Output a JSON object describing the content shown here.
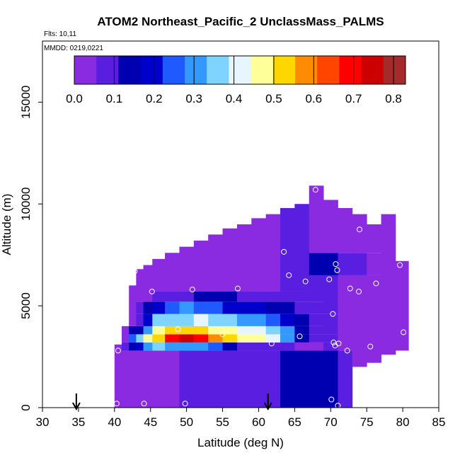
{
  "chart_data": {
    "type": "heatmap",
    "title": "ATOM2 Northeast_Pacific_2 UnclassMass_PALMS",
    "flights_label": "Flts: 10,11",
    "dates_label": "MMDD: 0219,0221",
    "xlabel": "Latitude (deg N)",
    "ylabel": "Altitude (m)",
    "xlim": [
      30,
      85
    ],
    "ylim": [
      0,
      18000
    ],
    "x_ticks": [
      "30",
      "35",
      "40",
      "45",
      "50",
      "55",
      "60",
      "65",
      "70",
      "75",
      "80",
      "85"
    ],
    "y_ticks": [
      "0",
      "5000",
      "10000",
      "15000"
    ],
    "colorbar": {
      "range": [
        0.0,
        0.83
      ],
      "ticks": [
        "0.0",
        "0.1",
        "0.2",
        "0.3",
        "0.4",
        "0.5",
        "0.6",
        "0.7",
        "0.8"
      ],
      "colors": [
        "#8a2be2",
        "#5a1ee0",
        "#0000b0",
        "#0000cd",
        "#1e5aff",
        "#3399ff",
        "#7fd4ff",
        "#e6f5ff",
        "#ffff99",
        "#ffd700",
        "#ff8c00",
        "#ff4500",
        "#ff0000",
        "#cc0000",
        "#a52a2a"
      ]
    },
    "grid": false,
    "columns": [
      {
        "lat": 40.5,
        "bottom": 0,
        "top": 3100,
        "layers": [
          [
            0,
            3100,
            0.02
          ]
        ]
      },
      {
        "lat": 41.5,
        "bottom": 0,
        "top": 4000,
        "layers": [
          [
            0,
            2800,
            0.02
          ],
          [
            2800,
            3200,
            0.08
          ],
          [
            3200,
            4000,
            0.05
          ]
        ]
      },
      {
        "lat": 42.5,
        "bottom": 0,
        "top": 6000,
        "layers": [
          [
            0,
            2800,
            0.03
          ],
          [
            2800,
            3200,
            0.15
          ],
          [
            3200,
            3600,
            0.25
          ],
          [
            3600,
            4000,
            0.12
          ],
          [
            4000,
            6000,
            0.04
          ]
        ]
      },
      {
        "lat": 43.5,
        "bottom": 0,
        "top": 6800,
        "layers": [
          [
            0,
            2800,
            0.03
          ],
          [
            2800,
            3200,
            0.2
          ],
          [
            3200,
            3600,
            0.35
          ],
          [
            3600,
            4000,
            0.15
          ],
          [
            4000,
            4600,
            0.08
          ],
          [
            4600,
            5200,
            0.1
          ],
          [
            5200,
            6800,
            0.03
          ]
        ]
      },
      {
        "lat": 44.5,
        "bottom": 0,
        "top": 7000,
        "layers": [
          [
            0,
            2800,
            0.03
          ],
          [
            2800,
            3200,
            0.3
          ],
          [
            3200,
            3600,
            0.45
          ],
          [
            3600,
            4000,
            0.3
          ],
          [
            4000,
            4600,
            0.2
          ],
          [
            4600,
            5200,
            0.15
          ],
          [
            5200,
            7000,
            0.04
          ]
        ]
      },
      {
        "lat": 46,
        "bottom": 0,
        "top": 7300,
        "layers": [
          [
            0,
            2800,
            0.04
          ],
          [
            2800,
            3200,
            0.35
          ],
          [
            3200,
            3600,
            0.55
          ],
          [
            3600,
            4000,
            0.45
          ],
          [
            4000,
            4600,
            0.35
          ],
          [
            4600,
            5200,
            0.2
          ],
          [
            5200,
            5700,
            0.1
          ],
          [
            5700,
            7300,
            0.04
          ]
        ]
      },
      {
        "lat": 48,
        "bottom": 0,
        "top": 7600,
        "layers": [
          [
            0,
            2800,
            0.05
          ],
          [
            2800,
            3200,
            0.3
          ],
          [
            3200,
            3600,
            0.7
          ],
          [
            3600,
            4000,
            0.5
          ],
          [
            4000,
            4600,
            0.38
          ],
          [
            4600,
            5200,
            0.25
          ],
          [
            5200,
            5700,
            0.1
          ],
          [
            5700,
            7600,
            0.04
          ]
        ]
      },
      {
        "lat": 50,
        "bottom": 0,
        "top": 7900,
        "layers": [
          [
            0,
            2800,
            0.06
          ],
          [
            2800,
            3200,
            0.3
          ],
          [
            3200,
            3600,
            0.72
          ],
          [
            3600,
            4000,
            0.5
          ],
          [
            4000,
            4600,
            0.38
          ],
          [
            4600,
            5200,
            0.28
          ],
          [
            5200,
            5700,
            0.1
          ],
          [
            5700,
            7900,
            0.04
          ]
        ]
      },
      {
        "lat": 52,
        "bottom": 0,
        "top": 8200,
        "layers": [
          [
            0,
            2800,
            0.06
          ],
          [
            2800,
            3200,
            0.3
          ],
          [
            3200,
            3600,
            0.68
          ],
          [
            3600,
            4000,
            0.5
          ],
          [
            4000,
            4600,
            0.4
          ],
          [
            4600,
            5200,
            0.25
          ],
          [
            5200,
            5700,
            0.12
          ],
          [
            5700,
            8200,
            0.04
          ]
        ]
      },
      {
        "lat": 54,
        "bottom": 0,
        "top": 8500,
        "layers": [
          [
            0,
            2800,
            0.07
          ],
          [
            2800,
            3200,
            0.25
          ],
          [
            3200,
            3600,
            0.6
          ],
          [
            3600,
            4000,
            0.48
          ],
          [
            4000,
            4600,
            0.38
          ],
          [
            4600,
            5200,
            0.25
          ],
          [
            5200,
            5700,
            0.12
          ],
          [
            5700,
            8500,
            0.04
          ]
        ]
      },
      {
        "lat": 56,
        "bottom": 0,
        "top": 8800,
        "layers": [
          [
            0,
            2800,
            0.08
          ],
          [
            2800,
            3200,
            0.15
          ],
          [
            3200,
            3600,
            0.52
          ],
          [
            3600,
            4000,
            0.45
          ],
          [
            4000,
            4600,
            0.35
          ],
          [
            4600,
            5200,
            0.22
          ],
          [
            5200,
            5700,
            0.12
          ],
          [
            5700,
            8800,
            0.04
          ]
        ]
      },
      {
        "lat": 58,
        "bottom": 0,
        "top": 9000,
        "layers": [
          [
            0,
            2800,
            0.09
          ],
          [
            2800,
            3200,
            0.1
          ],
          [
            3200,
            3600,
            0.48
          ],
          [
            3600,
            4000,
            0.42
          ],
          [
            4000,
            4600,
            0.32
          ],
          [
            4600,
            5200,
            0.2
          ],
          [
            5200,
            5700,
            0.1
          ],
          [
            5700,
            9000,
            0.05
          ]
        ]
      },
      {
        "lat": 60,
        "bottom": 0,
        "top": 9300,
        "layers": [
          [
            0,
            2800,
            0.1
          ],
          [
            2800,
            3200,
            0.1
          ],
          [
            3200,
            3600,
            0.45
          ],
          [
            3600,
            4000,
            0.4
          ],
          [
            4000,
            4600,
            0.3
          ],
          [
            4600,
            5200,
            0.18
          ],
          [
            5200,
            5700,
            0.1
          ],
          [
            5700,
            9300,
            0.05
          ]
        ]
      },
      {
        "lat": 62,
        "bottom": 0,
        "top": 9500,
        "layers": [
          [
            0,
            2800,
            0.1
          ],
          [
            2800,
            3200,
            0.08
          ],
          [
            3200,
            3600,
            0.4
          ],
          [
            3600,
            4000,
            0.35
          ],
          [
            4000,
            4600,
            0.27
          ],
          [
            4600,
            5200,
            0.15
          ],
          [
            5200,
            5700,
            0.1
          ],
          [
            5700,
            9500,
            0.05
          ]
        ]
      },
      {
        "lat": 64,
        "bottom": 0,
        "top": 9800,
        "layers": [
          [
            0,
            2800,
            0.12
          ],
          [
            2800,
            3200,
            0.06
          ],
          [
            3200,
            3600,
            0.3
          ],
          [
            3600,
            4000,
            0.28
          ],
          [
            4000,
            4600,
            0.2
          ],
          [
            4600,
            5200,
            0.12
          ],
          [
            5200,
            5700,
            0.08
          ],
          [
            5700,
            9800,
            0.06
          ]
        ]
      },
      {
        "lat": 66,
        "bottom": 0,
        "top": 10000,
        "layers": [
          [
            0,
            2800,
            0.12
          ],
          [
            2800,
            3200,
            0.05
          ],
          [
            3200,
            3600,
            0.15
          ],
          [
            3600,
            4000,
            0.15
          ],
          [
            4000,
            4600,
            0.12
          ],
          [
            4600,
            5200,
            0.1
          ],
          [
            5200,
            5700,
            0.06
          ],
          [
            5700,
            10000,
            0.08
          ]
        ]
      },
      {
        "lat": 68,
        "bottom": 0,
        "top": 10900,
        "layers": [
          [
            0,
            2800,
            0.12
          ],
          [
            2800,
            3200,
            0.05
          ],
          [
            3200,
            3600,
            0.1
          ],
          [
            3600,
            4000,
            0.1
          ],
          [
            4000,
            4600,
            0.1
          ],
          [
            4600,
            5200,
            0.08
          ],
          [
            5200,
            6500,
            0.06
          ],
          [
            6500,
            7600,
            0.12
          ],
          [
            7600,
            10900,
            0.04
          ]
        ]
      },
      {
        "lat": 70,
        "bottom": 0,
        "top": 10200,
        "layers": [
          [
            0,
            2800,
            0.12
          ],
          [
            2800,
            3200,
            0.06
          ],
          [
            3200,
            3600,
            0.08
          ],
          [
            3600,
            4600,
            0.06
          ],
          [
            4600,
            6500,
            0.06
          ],
          [
            6500,
            7600,
            0.12
          ],
          [
            7600,
            10200,
            0.04
          ]
        ]
      },
      {
        "lat": 72,
        "bottom": 0,
        "top": 9800,
        "layers": [
          [
            0,
            2800,
            0.08
          ],
          [
            2800,
            6500,
            0.05
          ],
          [
            6500,
            7600,
            0.1
          ],
          [
            7600,
            9800,
            0.04
          ]
        ]
      },
      {
        "lat": 74,
        "bottom": 2000,
        "top": 9500,
        "layers": [
          [
            2000,
            6500,
            0.04
          ],
          [
            6500,
            7600,
            0.08
          ],
          [
            7600,
            9500,
            0.04
          ]
        ]
      },
      {
        "lat": 76,
        "bottom": 2200,
        "top": 9000,
        "layers": [
          [
            2200,
            6500,
            0.03
          ],
          [
            6500,
            7600,
            0.05
          ],
          [
            7600,
            9000,
            0.03
          ]
        ]
      },
      {
        "lat": 78,
        "bottom": 2600,
        "top": 9500,
        "layers": [
          [
            2600,
            9500,
            0.03
          ]
        ]
      },
      {
        "lat": 80,
        "bottom": 2800,
        "top": 7200,
        "layers": [
          [
            2800,
            7200,
            0.03
          ]
        ]
      }
    ],
    "sample_points": [
      {
        "lat": 40.3,
        "alt": 200
      },
      {
        "lat": 40.5,
        "alt": 2800
      },
      {
        "lat": 42.8,
        "alt": 6700
      },
      {
        "lat": 44.1,
        "alt": 200
      },
      {
        "lat": 45.2,
        "alt": 5700
      },
      {
        "lat": 48.8,
        "alt": 3850
      },
      {
        "lat": 49.8,
        "alt": 200
      },
      {
        "lat": 50.8,
        "alt": 5800
      },
      {
        "lat": 55,
        "alt": 3600
      },
      {
        "lat": 57.1,
        "alt": 5850
      },
      {
        "lat": 61.8,
        "alt": 3150
      },
      {
        "lat": 63.5,
        "alt": 7650
      },
      {
        "lat": 64.2,
        "alt": 6500
      },
      {
        "lat": 65.7,
        "alt": 3500
      },
      {
        "lat": 66.5,
        "alt": 6200
      },
      {
        "lat": 67.9,
        "alt": 10700
      },
      {
        "lat": 69.8,
        "alt": 6300
      },
      {
        "lat": 70.1,
        "alt": 400
      },
      {
        "lat": 70.3,
        "alt": 4600
      },
      {
        "lat": 70.4,
        "alt": 3200
      },
      {
        "lat": 70.6,
        "alt": 3050
      },
      {
        "lat": 70.7,
        "alt": 7050
      },
      {
        "lat": 70.9,
        "alt": 6750
      },
      {
        "lat": 71.1,
        "alt": 3150
      },
      {
        "lat": 71,
        "alt": 100
      },
      {
        "lat": 72.3,
        "alt": 2800
      },
      {
        "lat": 72.7,
        "alt": 5850
      },
      {
        "lat": 73.8,
        "alt": 10000
      },
      {
        "lat": 74,
        "alt": 8750
      },
      {
        "lat": 73.9,
        "alt": 5700
      },
      {
        "lat": 75.5,
        "alt": 3000
      },
      {
        "lat": 76.3,
        "alt": 6100
      },
      {
        "lat": 78.6,
        "alt": 9650
      },
      {
        "lat": 79.6,
        "alt": 7000
      },
      {
        "lat": 80.1,
        "alt": 3700
      }
    ],
    "arrows": [
      {
        "lat": 34.7
      },
      {
        "lat": 61.3
      }
    ]
  }
}
